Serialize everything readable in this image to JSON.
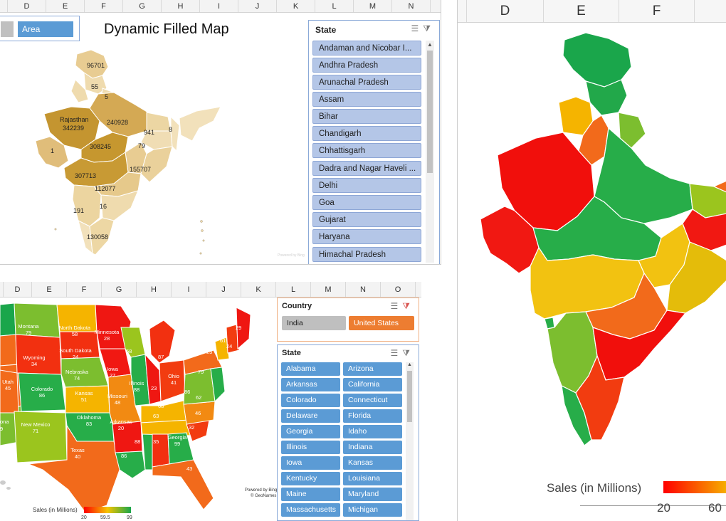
{
  "top_left": {
    "columns": [
      "D",
      "E",
      "F",
      "G",
      "H",
      "I",
      "J",
      "K",
      "L",
      "M",
      "N"
    ],
    "field_buttons": {
      "left_label": "",
      "area_label": "Area"
    },
    "title": "Dynamic Filled Map",
    "labels": {
      "a": "96701",
      "b": "55",
      "c": "5",
      "rajasthan": "Rajasthan",
      "rajasthan_val": "342239",
      "up": "240928",
      "gujarat_small": "1",
      "mp": "308245",
      "east1": "941",
      "east2": "79",
      "ne": "8",
      "maha": "307713",
      "odisha": "155707",
      "telangana": "112077",
      "ap": "16",
      "karnataka": "191",
      "tn": "130058"
    },
    "watermark": "Powered by Bing"
  },
  "state_slicer_1": {
    "title": "State",
    "items": [
      "Andaman and Nicobar I...",
      "Andhra Pradesh",
      "Arunachal Pradesh",
      "Assam",
      "Bihar",
      "Chandigarh",
      "Chhattisgarh",
      "Dadra and Nagar Haveli ...",
      "Delhi",
      "Goa",
      "Gujarat",
      "Haryana",
      "Himachal Pradesh"
    ]
  },
  "right_panel": {
    "columns": [
      "D",
      "E",
      "F"
    ],
    "legend_title": "Sales (in Millions)",
    "legend_ticks": [
      "20",
      "60"
    ],
    "colors": {
      "low": "#ff0000",
      "mid": "#f5c400",
      "high": "#1aa64b"
    }
  },
  "bottom_left": {
    "columns": [
      "D",
      "E",
      "F",
      "G",
      "H",
      "I",
      "J",
      "K",
      "L",
      "M",
      "N",
      "O"
    ],
    "states": [
      {
        "name": "Montana",
        "value": "79"
      },
      {
        "name": "North Dakota",
        "value": "58"
      },
      {
        "name": "Minnesota",
        "value": "28"
      },
      {
        "name": "Wyoming",
        "value": "34"
      },
      {
        "name": "South Dakota",
        "value": "24"
      },
      {
        "name": "Iowa",
        "value": "27"
      },
      {
        "name": "Nebraska",
        "value": "74"
      },
      {
        "name": "Illinois",
        "value": "88"
      },
      {
        "name": "Ohio",
        "value": "41"
      },
      {
        "name": "Utah",
        "value": "45"
      },
      {
        "name": "Colorado",
        "value": "86"
      },
      {
        "name": "Kansas",
        "value": "51"
      },
      {
        "name": "Missouri",
        "value": "48"
      },
      {
        "name": "Oklahoma",
        "value": "83"
      },
      {
        "name": "New Mexico",
        "value": "71"
      },
      {
        "name": "Arkansas",
        "value": "20"
      },
      {
        "name": "Texas",
        "value": "40"
      },
      {
        "name": "Georgia",
        "value": "99"
      }
    ],
    "unlabeled_values": [
      "29",
      "61",
      "24",
      "68",
      "87",
      "25",
      "79",
      "86",
      "62",
      "23",
      "68",
      "63",
      "46",
      "32",
      "35",
      "88",
      "86",
      "43",
      "9",
      "ona"
    ],
    "powered_by": "Powered by Bing",
    "geonames": "© GeoNames",
    "legend_title": "Sales (in Millions)",
    "legend_ticks": [
      "20",
      "59.5",
      "99"
    ]
  },
  "country_slicer": {
    "title": "Country",
    "items": [
      {
        "label": "India",
        "selected": false
      },
      {
        "label": "United States",
        "selected": true
      }
    ]
  },
  "state_slicer_2": {
    "title": "State",
    "items": [
      "Alabama",
      "Arizona",
      "Arkansas",
      "California",
      "Colorado",
      "Connecticut",
      "Delaware",
      "Florida",
      "Georgia",
      "Idaho",
      "Illinois",
      "Indiana",
      "Iowa",
      "Kansas",
      "Kentucky",
      "Louisiana",
      "Maine",
      "Maryland",
      "Massachusetts",
      "Michigan"
    ]
  }
}
